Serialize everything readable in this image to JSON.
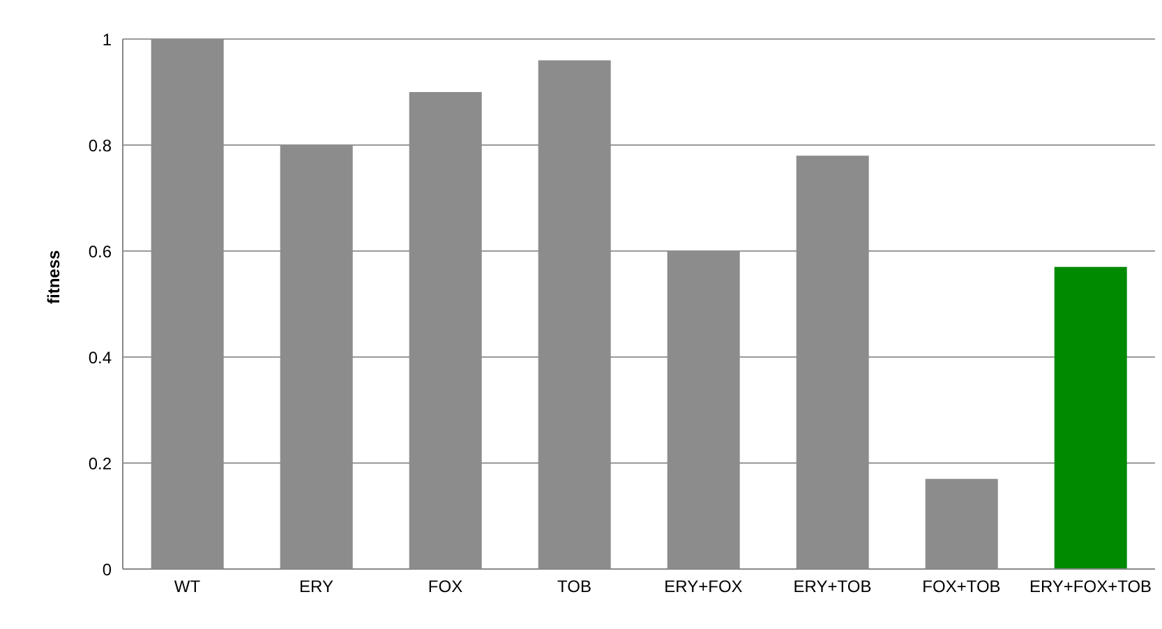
{
  "chart_data": {
    "type": "bar",
    "ylabel": "fitness",
    "categories": [
      "WT",
      "ERY",
      "FOX",
      "TOB",
      "ERY+FOX",
      "ERY+TOB",
      "FOX+TOB",
      "ERY+FOX+TOB"
    ],
    "values": [
      1.0,
      0.8,
      0.9,
      0.96,
      0.6,
      0.78,
      0.17,
      0.57
    ],
    "colors": [
      "#8c8c8c",
      "#8c8c8c",
      "#8c8c8c",
      "#8c8c8c",
      "#8c8c8c",
      "#8c8c8c",
      "#8c8c8c",
      "#008a00"
    ],
    "ylim": [
      0,
      1
    ],
    "yticks": [
      0,
      0.2,
      0.4,
      0.6,
      0.8,
      1
    ],
    "grid": "y",
    "legend": false
  }
}
